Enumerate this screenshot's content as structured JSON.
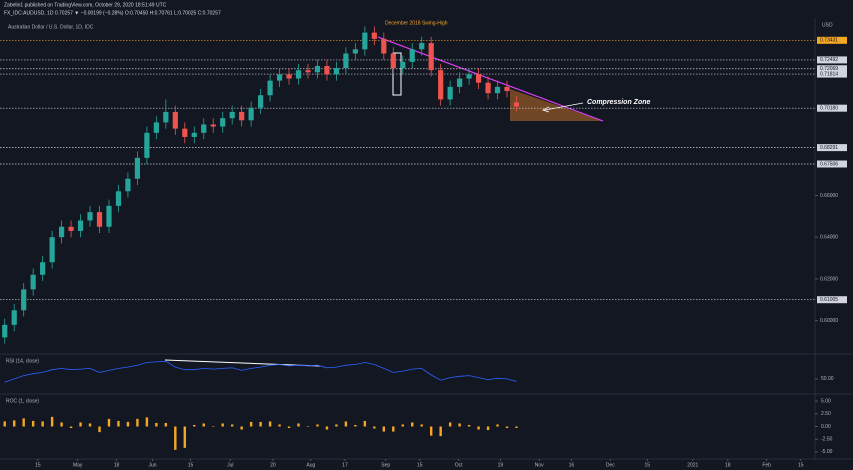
{
  "header": {
    "publisher": "Zabelin1 published on TradingView.com, October 29, 2020 18:51:49 UTC",
    "symbol_line": "FX_IDC:AUDUSD, 1D  0.70257 ▼ −0.00199 (−0.28%)  O:0.70450 H:0.70761 L:0.70025 C:0.70257"
  },
  "chart_data": {
    "type": "candlestick",
    "title": "Australian Dollar / U.S. Dollar, 1D, IDC",
    "currency": "USD",
    "annotations": [
      "December 2018 Swing-High",
      "Compression Zone"
    ],
    "up_color": "#26a69a",
    "down_color": "#ef5350",
    "xlim": [
      -0.5,
      85.5
    ],
    "xticks": [
      {
        "value": 3.5,
        "label": "15"
      },
      {
        "value": 7.7,
        "label": "May"
      },
      {
        "value": 11.8,
        "label": "18"
      },
      {
        "value": 15.6,
        "label": "Jun"
      },
      {
        "value": 19.6,
        "label": "15"
      },
      {
        "value": 23.8,
        "label": "Jul"
      },
      {
        "value": 28.3,
        "label": "20"
      },
      {
        "value": 32.3,
        "label": "Aug"
      },
      {
        "value": 35.9,
        "label": "17"
      },
      {
        "value": 40.2,
        "label": "Sep"
      },
      {
        "value": 43.8,
        "label": "15"
      },
      {
        "value": 47.9,
        "label": "Oct"
      },
      {
        "value": 52.3,
        "label": "19"
      },
      {
        "value": 56.4,
        "label": "Nov"
      },
      {
        "value": 59.8,
        "label": "16"
      },
      {
        "value": 63.9,
        "label": "Dec"
      },
      {
        "value": 67.8,
        "label": "15"
      },
      {
        "value": 72.6,
        "label": "2021"
      },
      {
        "value": 76.3,
        "label": "18"
      },
      {
        "value": 80.4,
        "label": "Feb"
      },
      {
        "value": 84,
        "label": "15"
      }
    ],
    "ylim": [
      0.585,
      0.745
    ],
    "yticks": [
      {
        "value": 0.6,
        "label": "0.60000"
      },
      {
        "value": 0.62,
        "label": "0.62000"
      },
      {
        "value": 0.64,
        "label": "0.64000"
      },
      {
        "value": 0.66,
        "label": "0.66000"
      }
    ],
    "levels": [
      0.73431,
      0.72492,
      0.72069,
      0.71814,
      {
        "value": 0.7018,
        "label": "0.70180"
      },
      0.68291,
      0.67506,
      0.61005
    ],
    "open": [
      0.592,
      0.598,
      0.605,
      0.615,
      0.622,
      0.628,
      0.64,
      0.645,
      0.643,
      0.648,
      0.652,
      0.645,
      0.655,
      0.662,
      0.668,
      0.678,
      0.69,
      0.695,
      0.7,
      0.692,
      0.688,
      0.69,
      0.694,
      0.693,
      0.697,
      0.7,
      0.696,
      0.702,
      0.708,
      0.715,
      0.718,
      0.716,
      0.72,
      0.719,
      0.722,
      0.718,
      0.721,
      0.728,
      0.73,
      0.738,
      0.735,
      0.728,
      0.721,
      0.724,
      0.73,
      0.733,
      0.72,
      0.706,
      0.712,
      0.716,
      0.718,
      0.714,
      0.709,
      0.712,
      0.7045
    ],
    "high": [
      0.601,
      0.608,
      0.618,
      0.625,
      0.631,
      0.643,
      0.648,
      0.648,
      0.651,
      0.655,
      0.655,
      0.658,
      0.665,
      0.671,
      0.681,
      0.693,
      0.698,
      0.706,
      0.703,
      0.695,
      0.693,
      0.697,
      0.697,
      0.7,
      0.703,
      0.703,
      0.705,
      0.711,
      0.718,
      0.721,
      0.721,
      0.723,
      0.723,
      0.725,
      0.725,
      0.724,
      0.731,
      0.733,
      0.741,
      0.741,
      0.738,
      0.731,
      0.727,
      0.733,
      0.736,
      0.736,
      0.723,
      0.715,
      0.719,
      0.721,
      0.721,
      0.717,
      0.715,
      0.715,
      0.70761
    ],
    "low": [
      0.589,
      0.595,
      0.602,
      0.612,
      0.619,
      0.625,
      0.637,
      0.64,
      0.64,
      0.645,
      0.642,
      0.642,
      0.652,
      0.659,
      0.665,
      0.675,
      0.687,
      0.692,
      0.689,
      0.685,
      0.685,
      0.687,
      0.69,
      0.69,
      0.694,
      0.693,
      0.693,
      0.699,
      0.705,
      0.712,
      0.713,
      0.713,
      0.716,
      0.716,
      0.715,
      0.715,
      0.718,
      0.725,
      0.727,
      0.732,
      0.725,
      0.718,
      0.718,
      0.721,
      0.727,
      0.717,
      0.703,
      0.703,
      0.709,
      0.713,
      0.711,
      0.706,
      0.706,
      0.707,
      0.70025
    ],
    "close": [
      0.598,
      0.605,
      0.615,
      0.622,
      0.628,
      0.64,
      0.645,
      0.643,
      0.648,
      0.652,
      0.645,
      0.655,
      0.662,
      0.668,
      0.678,
      0.69,
      0.695,
      0.7,
      0.692,
      0.688,
      0.69,
      0.694,
      0.693,
      0.697,
      0.7,
      0.696,
      0.702,
      0.708,
      0.715,
      0.718,
      0.716,
      0.72,
      0.719,
      0.722,
      0.718,
      0.721,
      0.728,
      0.73,
      0.738,
      0.735,
      0.728,
      0.721,
      0.724,
      0.73,
      0.733,
      0.72,
      0.706,
      0.712,
      0.716,
      0.718,
      0.714,
      0.709,
      0.712,
      0.71,
      0.70257
    ],
    "indicators": [
      {
        "type": "line",
        "name": "RSI (14, close)",
        "color": "#2962ff",
        "ylim": [
          30,
          85
        ],
        "yticks": [
          {
            "value": 50,
            "label": "50.00"
          }
        ],
        "values": [
          45,
          50,
          55,
          58,
          60,
          64,
          66,
          64,
          65,
          66,
          60,
          63,
          66,
          68,
          71,
          75,
          76,
          77,
          68,
          64,
          64,
          66,
          65,
          66,
          67,
          63,
          66,
          68,
          71,
          72,
          70,
          71,
          70,
          71,
          67,
          68,
          71,
          72,
          75,
          72,
          66,
          60,
          62,
          65,
          66,
          56,
          48,
          52,
          54,
          55,
          52,
          49,
          51,
          50,
          46
        ]
      },
      {
        "type": "bar",
        "name": "ROC (1, close)",
        "color": "#f5a623",
        "ylim": [
          -6,
          6
        ],
        "yticks": [
          {
            "value": 5,
            "label": "5.00"
          },
          {
            "value": 2.5,
            "label": "2.50"
          },
          {
            "value": 0,
            "label": "0.00"
          },
          {
            "value": -2.5,
            "label": "-2.50"
          },
          {
            "value": -5,
            "label": "-5.00"
          }
        ],
        "values": [
          1.0,
          1.2,
          1.6,
          1.1,
          1.0,
          1.9,
          0.8,
          -0.3,
          0.8,
          0.6,
          -1.1,
          1.5,
          1.1,
          0.9,
          1.5,
          1.8,
          0.7,
          0.7,
          -4.6,
          -4.2,
          0.3,
          0.6,
          -0.1,
          0.6,
          0.4,
          -0.6,
          0.9,
          0.9,
          1.0,
          0.4,
          -0.3,
          0.6,
          -0.1,
          0.4,
          -0.6,
          0.4,
          1.0,
          0.3,
          1.1,
          -0.4,
          -1.0,
          -1.0,
          0.4,
          0.8,
          0.4,
          -1.8,
          -1.9,
          0.8,
          0.6,
          0.3,
          -0.6,
          -0.7,
          0.4,
          -0.3,
          -0.28
        ]
      }
    ]
  }
}
